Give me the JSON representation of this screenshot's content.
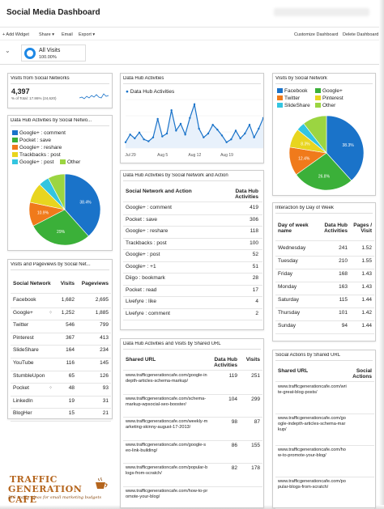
{
  "header": {
    "title": "Social Media Dashboard"
  },
  "toolbar": {
    "add_widget": "+ Add Widget",
    "share": "Share ▾",
    "email": "Email",
    "export": "Export ▾",
    "customize": "Customize Dashboard",
    "delete": "Delete Dashboard"
  },
  "segment": {
    "name": "All Visits",
    "pct": "100.00%"
  },
  "visits_widget": {
    "title": "Visits from Social Networks",
    "value": "4,397",
    "sub": "% of Total: 17.86% (24,620)"
  },
  "pie1": {
    "title": "Data Hub Activities by Social Netwo...",
    "legend": [
      "Google+ : comment",
      "Pocket : save",
      "Google+ : reshare",
      "Trackbacks : post",
      "Google+ : post",
      "Other"
    ],
    "colors": {
      "blue": "#1a73c9",
      "green": "#3bb039",
      "orange": "#f07a1b",
      "yellow": "#e8d51f",
      "cyan": "#33c5e0",
      "lime": "#9bd541"
    },
    "labels": [
      "38.4%",
      "29%",
      "10.9%"
    ]
  },
  "dha": {
    "title": "Data Hub Activities",
    "series": "Data Hub Activities",
    "xticks": [
      "Jul 29",
      "Aug 5",
      "Aug 12",
      "Aug 19"
    ]
  },
  "vbsn": {
    "title": "Visits by Social Network",
    "legend": [
      "Facebook",
      "Google+",
      "Twitter",
      "Pinterest",
      "SlideShare",
      "Other"
    ],
    "labels": [
      "38.3%",
      "26.8%",
      "12.4%",
      "8.3%"
    ]
  },
  "pv": {
    "title": "Visits and Pageviews by Social Net...",
    "headers": [
      "Social Network",
      "Visits",
      "Pageviews"
    ],
    "rows": [
      [
        "Facebook",
        "1,682",
        "2,695"
      ],
      [
        "Google+",
        "1,252",
        "1,885"
      ],
      [
        "Twitter",
        "546",
        "799"
      ],
      [
        "Pinterest",
        "367",
        "413"
      ],
      [
        "SlideShare",
        "164",
        "234"
      ],
      [
        "YouTube",
        "116",
        "145"
      ],
      [
        "StumbleUpon",
        "65",
        "126"
      ],
      [
        "Pocket",
        "48",
        "93"
      ],
      [
        "LinkedIn",
        "19",
        "31"
      ],
      [
        "BlogHer",
        "15",
        "21"
      ]
    ]
  },
  "dhsa": {
    "title": "Data Hub Activities by Social Network and Action",
    "headers": [
      "Social Network and Action",
      "Data Hub Activities"
    ],
    "rows": [
      [
        "Google+ : comment",
        "419"
      ],
      [
        "Pocket : save",
        "306"
      ],
      [
        "Google+ : reshare",
        "118"
      ],
      [
        "Trackbacks : post",
        "100"
      ],
      [
        "Google+ : post",
        "52"
      ],
      [
        "Google+ : +1",
        "51"
      ],
      [
        "Diigo : bookmark",
        "28"
      ],
      [
        "Pocket : read",
        "17"
      ],
      [
        "Livefyre : like",
        "4"
      ],
      [
        "Livefyre : comment",
        "2"
      ]
    ]
  },
  "dow": {
    "title": "Interaction by Day of Week",
    "headers": [
      "Day of week name",
      "Data Hub Activities",
      "Pages / Visit"
    ],
    "rows": [
      [
        "Wednesday",
        "241",
        "1.52"
      ],
      [
        "Tuesday",
        "210",
        "1.55"
      ],
      [
        "Friday",
        "168",
        "1.43"
      ],
      [
        "Monday",
        "163",
        "1.43"
      ],
      [
        "Saturday",
        "115",
        "1.44"
      ],
      [
        "Thursday",
        "101",
        "1.42"
      ],
      [
        "Sunday",
        "94",
        "1.44"
      ]
    ]
  },
  "surl": {
    "title": "Data Hub Activities and Visits by Shared URL",
    "headers": [
      "Shared URL",
      "Data Hub Activities",
      "Visits"
    ],
    "rows": [
      [
        "www.trafficgenerationcafe.com/google-indepth-articles-schema-markup/",
        "119",
        "251"
      ],
      [
        "www.trafficgenerationcafe.com/schema-markup-wpsocial-seo-booster/",
        "104",
        "299"
      ],
      [
        "www.trafficgenerationcafe.com/weekly-marketing-skinny-august-17-2013/",
        "98",
        "87"
      ],
      [
        "www.trafficgenerationcafe.com/google-seo-link-building/",
        "86",
        "155"
      ],
      [
        "www.trafficgenerationcafe.com/popular-blogs-from-scratch/",
        "82",
        "178"
      ],
      [
        "www.trafficgenerationcafe.com/how-to-promote-your-blog/",
        "",
        ""
      ]
    ]
  },
  "sabu": {
    "title": "Social Actions by Shared URL",
    "headers": [
      "Shared URL",
      "Social Actions"
    ],
    "rows": [
      [
        "www.trafficgenerationcafe.com/write-great-blog-posts/",
        ""
      ],
      [
        "www.trafficgenerationcafe.com/google-indepth-articles-schema-markup/",
        ""
      ],
      [
        "www.trafficgenerationcafe.com/how-to-promote-your-blog/",
        ""
      ],
      [
        "www.trafficgenerationcafe.com/popular-blogs-from-scratch/",
        ""
      ]
    ]
  },
  "logo": {
    "line1": "TRAFFIC",
    "line2": "GENERATION CAFE",
    "tag": "BIG traffic ideas for small marketing budgets"
  },
  "chart_data": [
    {
      "type": "line",
      "title": "Data Hub Activities",
      "series": [
        {
          "name": "Data Hub Activities",
          "values": [
            12,
            28,
            20,
            32,
            18,
            14,
            22,
            60,
            24,
            30,
            78,
            36,
            50,
            28,
            62,
            90,
            40,
            22,
            30,
            48,
            38,
            26,
            12,
            18,
            36,
            20,
            30,
            48,
            22,
            40,
            62
          ]
        }
      ],
      "xticks": [
        "Jul 29",
        "Aug 5",
        "Aug 12",
        "Aug 19"
      ]
    },
    {
      "type": "pie",
      "title": "Data Hub Activities by Social Netwo...",
      "categories": [
        "Google+ : comment",
        "Pocket : save",
        "Google+ : reshare",
        "Trackbacks : post",
        "Google+ : post",
        "Other"
      ],
      "values": [
        38.4,
        29,
        10.9,
        9.2,
        4.8,
        7.7
      ]
    },
    {
      "type": "pie",
      "title": "Visits by Social Network",
      "categories": [
        "Facebook",
        "Google+",
        "Twitter",
        "Pinterest",
        "SlideShare",
        "Other"
      ],
      "values": [
        38.3,
        26.8,
        12.4,
        8.3,
        3.7,
        10.5
      ]
    }
  ]
}
